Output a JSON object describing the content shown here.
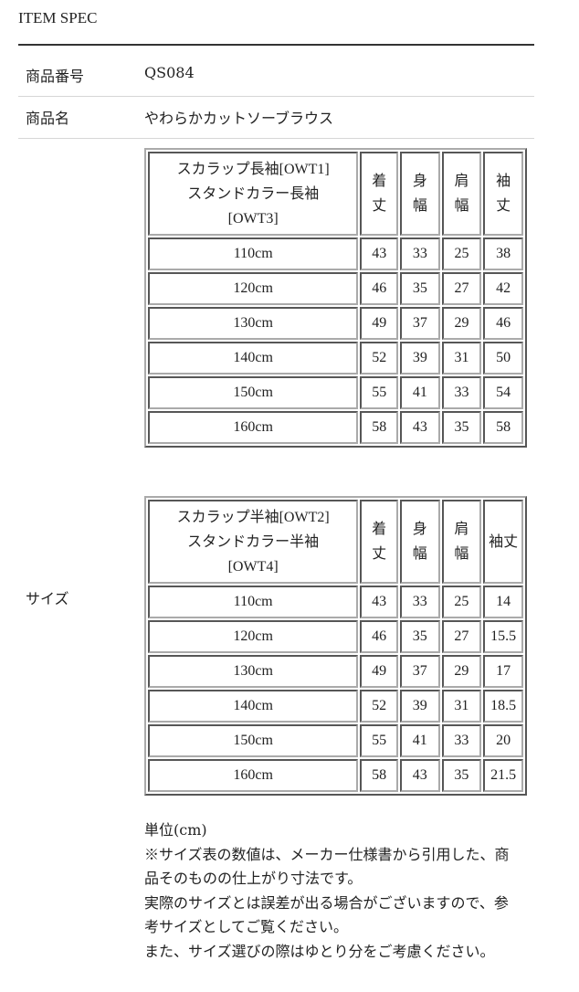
{
  "title": "ITEM SPEC",
  "rows": [
    {
      "label": "商品番号",
      "value": "QS084"
    },
    {
      "label": "商品名",
      "value": "やわらかカットソーブラウス"
    }
  ],
  "size_label": "サイズ",
  "tables": [
    {
      "header": [
        "スカラップ長袖[OWT1]\nスタンドカラー長袖\n[OWT3]",
        "着\n丈",
        "身\n幅",
        "肩\n幅",
        "袖\n丈"
      ],
      "rows": [
        [
          "110cm",
          "43",
          "33",
          "25",
          "38"
        ],
        [
          "120cm",
          "46",
          "35",
          "27",
          "42"
        ],
        [
          "130cm",
          "49",
          "37",
          "29",
          "46"
        ],
        [
          "140cm",
          "52",
          "39",
          "31",
          "50"
        ],
        [
          "150cm",
          "55",
          "41",
          "33",
          "54"
        ],
        [
          "160cm",
          "58",
          "43",
          "35",
          "58"
        ]
      ]
    },
    {
      "header": [
        "スカラップ半袖[OWT2]\nスタンドカラー半袖\n[OWT4]",
        "着\n丈",
        "身\n幅",
        "肩\n幅",
        "袖丈"
      ],
      "rows": [
        [
          "110cm",
          "43",
          "33",
          "25",
          "14"
        ],
        [
          "120cm",
          "46",
          "35",
          "27",
          "15.5"
        ],
        [
          "130cm",
          "49",
          "37",
          "29",
          "17"
        ],
        [
          "140cm",
          "52",
          "39",
          "31",
          "18.5"
        ],
        [
          "150cm",
          "55",
          "41",
          "33",
          "20"
        ],
        [
          "160cm",
          "58",
          "43",
          "35",
          "21.5"
        ]
      ]
    }
  ],
  "notes": [
    "単位(cm)",
    "※サイズ表の数値は、メーカー仕様書から引用した、商品そのものの仕上がり寸法です。",
    "実際のサイズとは誤差が出る場合がございますので、参考サイズとしてご覧ください。",
    "また、サイズ選びの際はゆとり分をご考慮ください。"
  ]
}
